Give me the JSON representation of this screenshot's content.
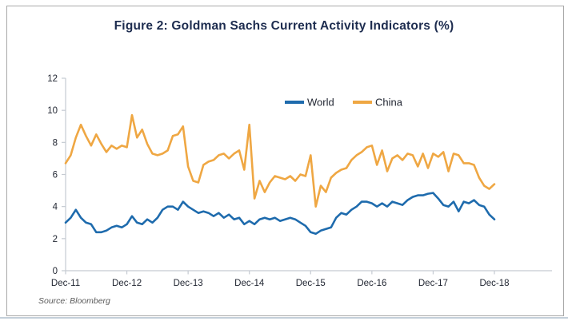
{
  "figure": {
    "title": "Figure 2: Goldman Sachs Current Activity Indicators (%)",
    "source": "Source: Bloomberg"
  },
  "colors": {
    "world_line": "#1e6bad",
    "china_line": "#efa743",
    "title_text": "#1d2c4f",
    "tick_text": "#222733",
    "legend_text": "#1f2430",
    "axis_line": "#c5cad2",
    "source_text": "#5a5a5a",
    "card_border": "#a8a8a8"
  },
  "chart_data": {
    "type": "line",
    "title": "Figure 2: Goldman Sachs Current Activity Indicators (%)",
    "x_frequency": "monthly",
    "x_start": "Dec-11",
    "x_end": "Dec-18",
    "x_tick_labels": [
      "Dec-11",
      "Dec-12",
      "Dec-13",
      "Dec-14",
      "Dec-15",
      "Dec-16",
      "Dec-17",
      "Dec-18"
    ],
    "y_ticks": [
      0,
      2,
      4,
      6,
      8,
      10,
      12
    ],
    "ylim": [
      0,
      12
    ],
    "grid": false,
    "legend_position": "top-center",
    "series": [
      {
        "name": "World",
        "color": "#1e6bad",
        "values": [
          3.0,
          3.3,
          3.8,
          3.3,
          3.0,
          2.9,
          2.4,
          2.4,
          2.5,
          2.7,
          2.8,
          2.7,
          2.9,
          3.4,
          3.0,
          2.9,
          3.2,
          3.0,
          3.3,
          3.8,
          4.0,
          4.0,
          3.8,
          4.3,
          4.0,
          3.8,
          3.6,
          3.7,
          3.6,
          3.4,
          3.6,
          3.3,
          3.5,
          3.2,
          3.3,
          2.9,
          3.1,
          2.9,
          3.2,
          3.3,
          3.2,
          3.3,
          3.1,
          3.2,
          3.3,
          3.2,
          3.0,
          2.8,
          2.4,
          2.3,
          2.5,
          2.6,
          2.7,
          3.3,
          3.6,
          3.5,
          3.8,
          4.0,
          4.3,
          4.3,
          4.2,
          4.0,
          4.2,
          4.0,
          4.3,
          4.2,
          4.1,
          4.4,
          4.6,
          4.7,
          4.7,
          4.8,
          4.85,
          4.5,
          4.1,
          4.0,
          4.3,
          3.7,
          4.3,
          4.2,
          4.4,
          4.1,
          4.0,
          3.5,
          3.2
        ]
      },
      {
        "name": "China",
        "color": "#efa743",
        "values": [
          6.7,
          7.2,
          8.3,
          9.1,
          8.4,
          7.8,
          8.5,
          7.9,
          7.4,
          7.8,
          7.6,
          7.8,
          7.7,
          9.7,
          8.3,
          8.8,
          7.9,
          7.3,
          7.2,
          7.3,
          7.5,
          8.4,
          8.5,
          9.0,
          6.5,
          5.6,
          5.5,
          6.6,
          6.8,
          6.9,
          7.2,
          7.3,
          7.0,
          7.3,
          7.5,
          6.3,
          9.1,
          4.5,
          5.6,
          4.9,
          5.5,
          5.9,
          5.8,
          5.7,
          5.9,
          5.6,
          6.0,
          5.9,
          7.2,
          4.0,
          5.3,
          4.9,
          5.8,
          6.1,
          6.3,
          6.4,
          6.9,
          7.2,
          7.4,
          7.7,
          7.8,
          6.6,
          7.5,
          6.2,
          7.0,
          7.2,
          6.9,
          7.3,
          7.2,
          6.5,
          7.3,
          6.4,
          7.3,
          7.1,
          7.4,
          6.2,
          7.3,
          7.2,
          6.7,
          6.7,
          6.6,
          5.8,
          5.3,
          5.1,
          5.4
        ]
      }
    ]
  }
}
